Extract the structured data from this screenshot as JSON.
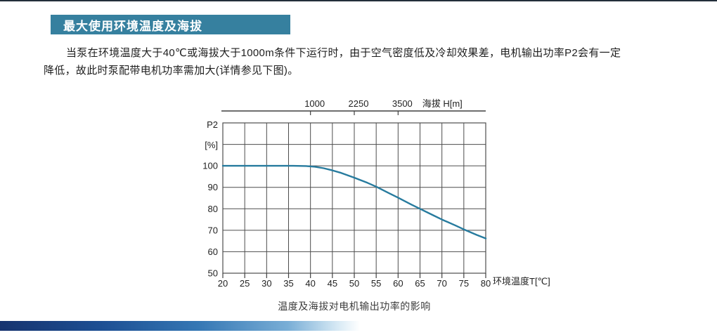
{
  "page": {
    "section_title": "最大使用环境温度及海拔",
    "paragraph_line1": "当泵在环境温度大于40℃或海拔大于1000m条件下运行时，由于空气密度低及冷却效果差，电机输出功率P2会有一定",
    "paragraph_line2": "降低，故此时泵配带电机功率需加大(详情参见下图)。",
    "caption": "温度及海拔对电机输出功率的影响"
  },
  "chart_data": {
    "type": "line",
    "title": "温度及海拔对电机输出功率的影响",
    "x_axis": {
      "label": "环境温度T[℃]",
      "ticks": [
        20,
        25,
        30,
        35,
        40,
        45,
        50,
        55,
        60,
        65,
        70,
        75,
        80
      ],
      "range": [
        20,
        80
      ]
    },
    "y_axis": {
      "label_line1": "P2",
      "label_line2": "[%]",
      "ticks": [
        100,
        90,
        80,
        70,
        60,
        50
      ],
      "gridline_values": [
        120,
        110,
        100,
        90,
        80,
        70,
        60,
        50
      ],
      "range": [
        50,
        120
      ]
    },
    "top_axis": {
      "label": "海拔 H[m]",
      "ticks": [
        "1000",
        "2250",
        "3500"
      ],
      "tick_temp_positions": [
        40,
        50,
        60
      ]
    },
    "grid": true,
    "legend": "none",
    "series": [
      {
        "name": "P2-derating-curve",
        "color": "#277b9e",
        "points": [
          [
            20,
            100
          ],
          [
            36,
            100
          ],
          [
            39,
            99.9
          ],
          [
            41,
            99.6
          ],
          [
            43,
            98.9
          ],
          [
            45,
            97.9
          ],
          [
            47,
            96.7
          ],
          [
            50,
            94.5
          ],
          [
            53,
            92.1
          ],
          [
            55,
            90.3
          ],
          [
            58,
            87.2
          ],
          [
            60,
            85.2
          ],
          [
            63,
            82.0
          ],
          [
            65,
            80.0
          ],
          [
            68,
            77.0
          ],
          [
            70,
            75.0
          ],
          [
            73,
            72.3
          ],
          [
            75,
            70.4
          ],
          [
            78,
            67.8
          ],
          [
            80,
            66.2
          ]
        ]
      }
    ]
  },
  "colors": {
    "header_bar": "#36809f",
    "header_text": "#ffffff",
    "top_rule": "#232e3a",
    "grid_line": "#4d4d4d",
    "axis_line": "#3f3f3f",
    "curve": "#277b9e",
    "label_text": "#222222"
  }
}
